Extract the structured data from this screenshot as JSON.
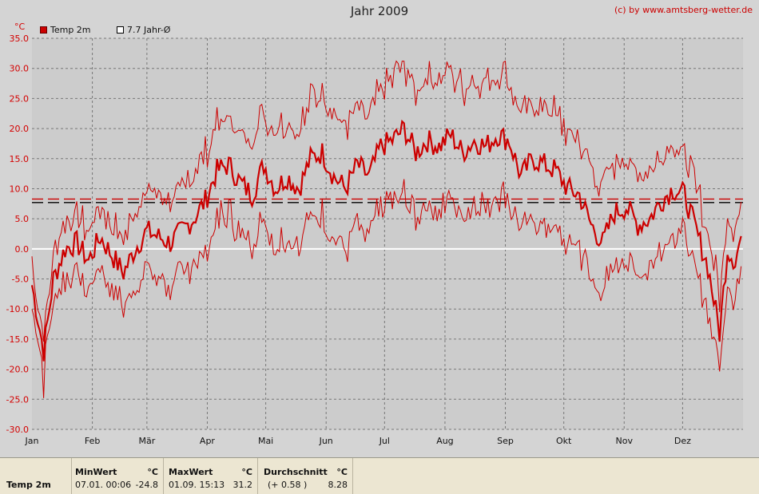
{
  "header": {
    "title": "Jahr 2009",
    "credit": "(c) by www.amtsberg-wetter.de",
    "unit": "°C"
  },
  "legend": [
    {
      "label": "Temp 2m",
      "color": "#cc0000",
      "filled": true
    },
    {
      "label": "7.7 Jahr-Ø",
      "color": "#000000",
      "filled": false
    }
  ],
  "chart_data": {
    "type": "line",
    "title": "Jahr 2009",
    "ylabel": "°C",
    "ylim": [
      -30,
      35
    ],
    "yticks": [
      "35.0",
      "30.0",
      "25.0",
      "20.0",
      "15.0",
      "10.0",
      "5.0",
      "0.0",
      "-5.0",
      "-10.0",
      "-15.0",
      "-20.0",
      "-25.0",
      "-30.0"
    ],
    "months": [
      "Jan",
      "Feb",
      "Mär",
      "Apr",
      "Mai",
      "Jun",
      "Jul",
      "Aug",
      "Sep",
      "Okt",
      "Nov",
      "Dez"
    ],
    "grid": true,
    "reference_lines": [
      {
        "label": "Durchschnitt",
        "value": 8.28,
        "color": "#cc0000",
        "style": "dashed"
      },
      {
        "label": "7.7 Jahr-Ø",
        "value": 7.7,
        "color": "#000000",
        "style": "dashed"
      },
      {
        "label": "0",
        "value": 0,
        "color": "#ffffff",
        "style": "solid"
      }
    ],
    "series": [
      {
        "name": "Temp 2m",
        "color": "#cc0000",
        "daily_mean_anchors": [
          {
            "day": 1,
            "value": -6
          },
          {
            "day": 7,
            "value": -17
          },
          {
            "day": 12,
            "value": -5
          },
          {
            "day": 18,
            "value": 0
          },
          {
            "day": 24,
            "value": 1
          },
          {
            "day": 30,
            "value": -2
          },
          {
            "day": 36,
            "value": 2
          },
          {
            "day": 42,
            "value": -1
          },
          {
            "day": 48,
            "value": -4
          },
          {
            "day": 54,
            "value": 0
          },
          {
            "day": 60,
            "value": 3
          },
          {
            "day": 66,
            "value": 2
          },
          {
            "day": 72,
            "value": 1
          },
          {
            "day": 78,
            "value": 3
          },
          {
            "day": 84,
            "value": 5
          },
          {
            "day": 90,
            "value": 8
          },
          {
            "day": 96,
            "value": 13
          },
          {
            "day": 102,
            "value": 14
          },
          {
            "day": 108,
            "value": 11
          },
          {
            "day": 114,
            "value": 9
          },
          {
            "day": 120,
            "value": 14
          },
          {
            "day": 126,
            "value": 10
          },
          {
            "day": 132,
            "value": 12
          },
          {
            "day": 138,
            "value": 10
          },
          {
            "day": 144,
            "value": 15
          },
          {
            "day": 150,
            "value": 16
          },
          {
            "day": 156,
            "value": 12
          },
          {
            "day": 162,
            "value": 10
          },
          {
            "day": 168,
            "value": 14
          },
          {
            "day": 174,
            "value": 12
          },
          {
            "day": 180,
            "value": 17
          },
          {
            "day": 186,
            "value": 18
          },
          {
            "day": 192,
            "value": 20
          },
          {
            "day": 198,
            "value": 16
          },
          {
            "day": 204,
            "value": 18
          },
          {
            "day": 210,
            "value": 17
          },
          {
            "day": 216,
            "value": 19
          },
          {
            "day": 222,
            "value": 16
          },
          {
            "day": 228,
            "value": 18
          },
          {
            "day": 234,
            "value": 17
          },
          {
            "day": 240,
            "value": 19
          },
          {
            "day": 246,
            "value": 18
          },
          {
            "day": 252,
            "value": 12
          },
          {
            "day": 258,
            "value": 15
          },
          {
            "day": 264,
            "value": 14
          },
          {
            "day": 270,
            "value": 13
          },
          {
            "day": 276,
            "value": 10
          },
          {
            "day": 282,
            "value": 9
          },
          {
            "day": 288,
            "value": 4
          },
          {
            "day": 294,
            "value": 1
          },
          {
            "day": 300,
            "value": 6
          },
          {
            "day": 306,
            "value": 7
          },
          {
            "day": 312,
            "value": 4
          },
          {
            "day": 318,
            "value": 5
          },
          {
            "day": 324,
            "value": 8
          },
          {
            "day": 330,
            "value": 10
          },
          {
            "day": 336,
            "value": 9
          },
          {
            "day": 342,
            "value": 3
          },
          {
            "day": 348,
            "value": -3
          },
          {
            "day": 354,
            "value": -14
          },
          {
            "day": 358,
            "value": 0
          },
          {
            "day": 362,
            "value": -2
          },
          {
            "day": 365,
            "value": 2
          }
        ],
        "min": -24.8,
        "max": 31.2,
        "mean": 8.28
      }
    ]
  },
  "footer": {
    "series_label": "Temp 2m",
    "min": {
      "header": "MinWert",
      "unit": "°C",
      "datetime": "07.01.  00:06",
      "value": "-24.8"
    },
    "max": {
      "header": "MaxWert",
      "unit": "°C",
      "datetime": "01.09.  15:13",
      "value": "31.2"
    },
    "avg": {
      "header": "Durchschnitt",
      "unit": "°C",
      "delta": "(+ 0.58 )",
      "value": "8.28"
    }
  }
}
